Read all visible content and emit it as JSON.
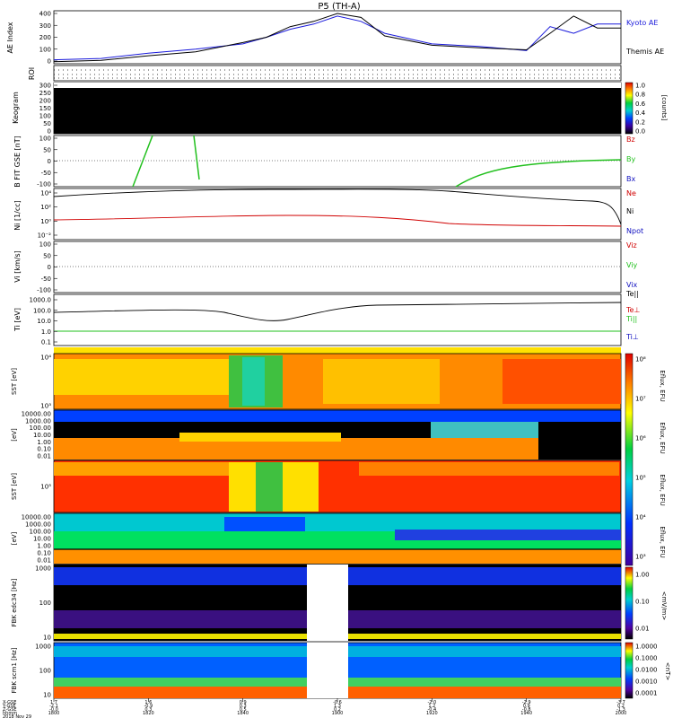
{
  "title": "P5 (TH-A)",
  "panels": {
    "ae": {
      "ylabel": "AE Index",
      "yticks": [
        "400",
        "300",
        "200",
        "100",
        "0"
      ],
      "legend": [
        {
          "label": "Kyoto AE",
          "color": "#1a1adb"
        },
        {
          "label": "Themis AE",
          "color": "#000000"
        }
      ]
    },
    "roi": {
      "ylabel": "ROI"
    },
    "keogram": {
      "ylabel": "Keogram",
      "yticks": [
        "300",
        "250",
        "200",
        "150",
        "100",
        "50",
        "0"
      ],
      "cbar_ticks": [
        "1.0",
        "0.8",
        "0.6",
        "0.4",
        "0.2",
        "0.0"
      ],
      "cbar_label": "[counts]"
    },
    "bfit": {
      "ylabel": "B FIT GSE [nT]",
      "yticks": [
        "100",
        "50",
        "0",
        "-50",
        "-100"
      ],
      "legend": [
        {
          "label": "Bz",
          "color": "#d00000"
        },
        {
          "label": "By",
          "color": "#22c01e"
        },
        {
          "label": "Bx",
          "color": "#1010c0"
        }
      ]
    },
    "ni": {
      "ylabel": "Ni [1/cc]",
      "yticks": [
        "10⁴",
        "10²",
        "10⁰",
        "10⁻²"
      ],
      "legend": [
        {
          "label": "Ne",
          "color": "#d00000"
        },
        {
          "label": "Ni",
          "color": "#000000"
        },
        {
          "label": "Npot",
          "color": "#1010c0"
        }
      ]
    },
    "vi": {
      "ylabel": "Vi [km/s]",
      "yticks": [
        "100",
        "50",
        "0",
        "-50",
        "-100"
      ],
      "legend": [
        {
          "label": "Viz",
          "color": "#d00000"
        },
        {
          "label": "Viy",
          "color": "#22c01e"
        },
        {
          "label": "Vix",
          "color": "#1010c0"
        }
      ]
    },
    "ti": {
      "ylabel": "Ti [eV]",
      "yticks": [
        "1000.0",
        "100.0",
        "10.0",
        "1.0",
        "0.1"
      ],
      "legend": [
        {
          "label": "Te||",
          "color": "#000000"
        },
        {
          "label": "Te⊥",
          "color": "#d00000"
        },
        {
          "label": "Ti||",
          "color": "#22c01e"
        },
        {
          "label": "Ti⊥",
          "color": "#1010c0"
        }
      ]
    },
    "sst_e": {
      "ylabel": "SST [eV]",
      "yticks": [
        "10⁴",
        "10³"
      ]
    },
    "esa_e": {
      "ylabel": "[eV]",
      "yticks": [
        "10000.00",
        "1000.00",
        "100.00",
        "10.00",
        "1.00",
        "0.10",
        "0.01"
      ]
    },
    "sst_i": {
      "ylabel": "SST [eV]",
      "yticks": [
        "10⁵"
      ]
    },
    "esa_i": {
      "ylabel": "[eV]",
      "yticks": [
        "10000.00",
        "1000.00",
        "100.00",
        "10.00",
        "1.00",
        "0.10",
        "0.01"
      ]
    },
    "fbk_e": {
      "ylabel": "FBK edc34 [Hz]",
      "yticks": [
        "1000",
        "100",
        "10"
      ],
      "cbar_ticks": [
        "1.00",
        "0.10",
        "0.01"
      ],
      "cbar_label": "<mV/m>"
    },
    "fbk_b": {
      "ylabel": "FBK scm1 [Hz]",
      "yticks": [
        "1000",
        "100",
        "10"
      ],
      "cbar_ticks": [
        "1.0000",
        "0.1000",
        "0.0100",
        "0.0010",
        "0.0001"
      ],
      "cbar_label": "<nT>"
    }
  },
  "efu_cbar": {
    "ticks": [
      "10⁸",
      "10⁷",
      "10⁶",
      "10⁵",
      "10⁴",
      "10³"
    ],
    "label": "Eflux, EFU"
  },
  "xaxis": {
    "row_labels": [
      "X-GSE",
      "Y-GSE",
      "Z-GSE",
      "hhmm",
      "2018 Nov 29"
    ],
    "ticks": [
      {
        "x": "1.7",
        "y": "-2.1",
        "z": "-0.0",
        "hhmm": "1800"
      },
      {
        "x": "1.6",
        "y": "-0.9",
        "z": "0.3",
        "hhmm": "1820"
      },
      {
        "x": "0.9",
        "y": "0.3",
        "z": "0.5",
        "hhmm": "1840"
      },
      {
        "x": "-0.6",
        "y": "1.3",
        "z": "0.2",
        "hhmm": "1900"
      },
      {
        "x": "-2.0",
        "y": "1.2",
        "z": "-0.4",
        "hhmm": "1920"
      },
      {
        "x": "-2.9",
        "y": "0.9",
        "z": "-0.8",
        "hhmm": "1940"
      },
      {
        "x": "-3.7",
        "y": "0.2",
        "z": "-1.3",
        "hhmm": "2000"
      }
    ]
  },
  "chart_data": {
    "type": "line",
    "title": "P5 (TH-A)",
    "x_unit": "hhmm (UT), 2018 Nov 29",
    "x": [
      "1800",
      "1810",
      "1820",
      "1830",
      "1840",
      "1845",
      "1850",
      "1855",
      "1900",
      "1905",
      "1910",
      "1920",
      "1930",
      "1940",
      "1945",
      "1950",
      "1955",
      "2000"
    ],
    "series": [
      {
        "name": "Kyoto AE",
        "values": [
          30,
          40,
          80,
          110,
          150,
          200,
          260,
          300,
          360,
          320,
          230,
          150,
          130,
          100,
          280,
          230,
          300,
          300
        ]
      },
      {
        "name": "Themis AE",
        "values": [
          15,
          25,
          60,
          90,
          160,
          200,
          280,
          320,
          380,
          350,
          210,
          140,
          120,
          105,
          230,
          360,
          270,
          270
        ]
      }
    ],
    "ylabel": "AE Index",
    "ylim": [
      0,
      400
    ]
  }
}
